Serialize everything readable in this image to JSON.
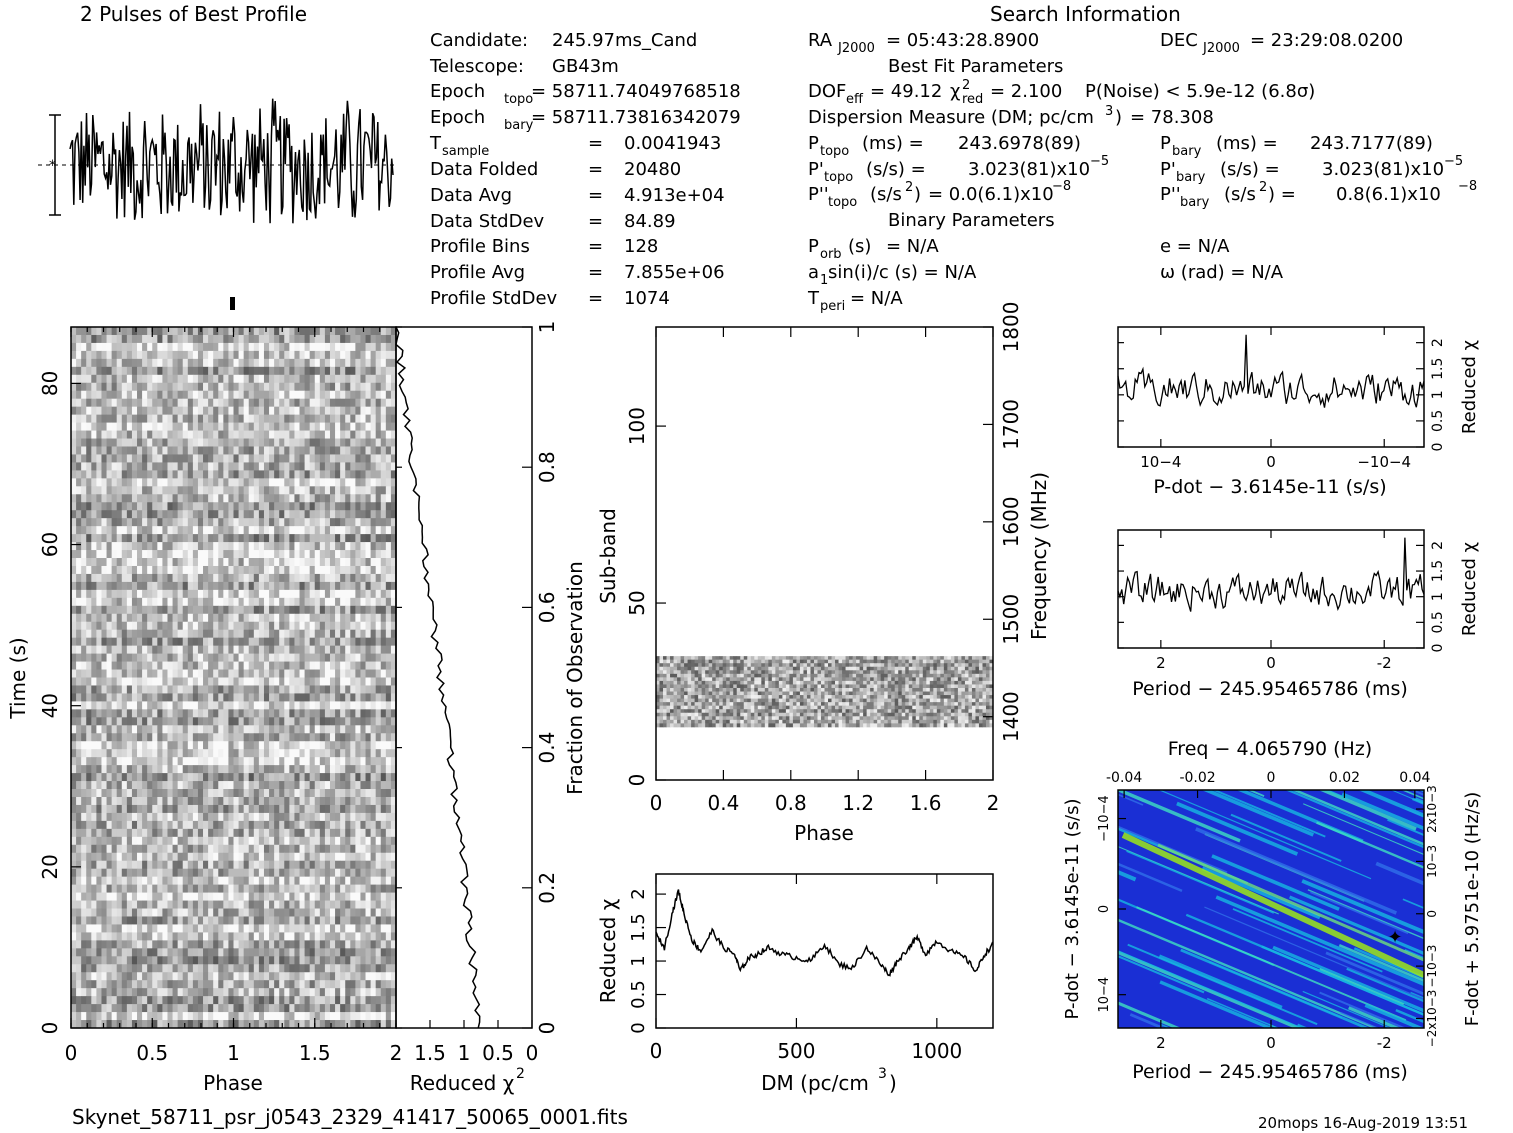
{
  "header": {
    "profile_title": "2 Pulses of Best Profile",
    "search_title": "Search Information",
    "best_fit_title": "Best Fit Parameters",
    "binary_title": "Binary Parameters"
  },
  "candidate_info": [
    {
      "label": "Candidate:",
      "value": "245.97ms_Cand"
    },
    {
      "label": "Telescope:",
      "value": "GB43m"
    },
    {
      "label": "Epoch",
      "sub": "topo",
      "value": "= 58711.74049768518"
    },
    {
      "label": "Epoch",
      "sub": "bary",
      "value": "= 58711.73816342079"
    },
    {
      "label": "T",
      "sub": "sample",
      "value": "0.0041943"
    },
    {
      "label": "Data Folded",
      "value": "20480"
    },
    {
      "label": "Data Avg",
      "value": "4.913e+04"
    },
    {
      "label": "Data StdDev",
      "value": "84.89"
    },
    {
      "label": "Profile Bins",
      "value": "128"
    },
    {
      "label": "Profile Avg",
      "value": "7.855e+06"
    },
    {
      "label": "Profile StdDev",
      "value": "1074"
    }
  ],
  "search_info": {
    "ra": {
      "label": "RA",
      "sub": "J2000",
      "value": "= 05:43:28.8900"
    },
    "dec": {
      "label": "DEC",
      "sub": "J2000",
      "value": "= 23:29:08.0200"
    },
    "dof": {
      "label": "DOF",
      "sub": "eff",
      "value": "= 49.12"
    },
    "chi2": {
      "value": "= 2.100"
    },
    "pnoise": "P(Noise) < 5.9e-12   (6.8σ)",
    "dm_line": "Dispersion Measure (DM; pc/cm",
    "dm_value": "= 78.308",
    "p_topo": {
      "value": "243.6978(89)"
    },
    "p_bary": {
      "value": "243.7177(89)"
    },
    "pd_topo": {
      "value": "3.023(81)x10"
    },
    "pd_bary": {
      "value": "3.023(81)x10"
    },
    "pdd_topo": {
      "value": "= 0.0(6.1)x10"
    },
    "pdd_bary": {
      "value": "0.8(6.1)x10"
    },
    "porb": "= N/A",
    "ecc": "e = N/A",
    "a1": "sin(i)/c (s) = N/A",
    "omega": "ω (rad) = N/A",
    "tperi": "= N/A"
  },
  "axes": {
    "phase": "Phase",
    "time": "Time (s)",
    "reduced_chi2": "Reduced χ",
    "fraction": "Fraction of Observation",
    "subband": "Sub-band",
    "frequency": "Frequency (MHz)",
    "dm": "DM (pc/cm",
    "pdot": "P-dot − 3.6145e-11 (s/s)",
    "period": "Period − 245.95465786 (ms)",
    "freq": "Freq − 4.065790 (Hz)",
    "pdot_left": "P-dot − 3.6145e-11 (s/s)",
    "fdot": "F-dot + 5.9751e-10 (Hz/s)"
  },
  "footer": {
    "filename": "Skynet_58711_psr_j0543_2329_41417_50065_0001.fits",
    "stamp": "20mops 16-Aug-2019 13:51"
  },
  "chart_data": [
    {
      "type": "line",
      "title": "2 Pulses of Best Profile",
      "xlabel": "",
      "ylabel": "",
      "note": "noisy pulse profile, 2 rotations"
    },
    {
      "type": "heatmap",
      "xlabel": "Phase",
      "ylabel": "Time (s)",
      "xlim": [
        0,
        2
      ],
      "ylim": [
        0,
        87
      ],
      "x_ticks": [
        0,
        0.5,
        1,
        1.5
      ],
      "y_ticks": [
        0,
        20,
        40,
        60,
        80
      ]
    },
    {
      "type": "line",
      "xlabel": "Reduced χ2",
      "ylabel": "Fraction of Observation",
      "xlim": [
        2,
        0
      ],
      "ylim": [
        0,
        1
      ],
      "x_ticks": [
        2,
        1.5,
        1,
        0.5,
        0
      ],
      "y_ticks": [
        0,
        0.2,
        0.4,
        0.6,
        0.8,
        1
      ]
    },
    {
      "type": "heatmap",
      "xlabel": "Phase",
      "ylabel": "Sub-band",
      "xlim": [
        0,
        2
      ],
      "ylim": [
        0,
        128
      ],
      "x_ticks": [
        0,
        0.4,
        0.8,
        1.2,
        1.6,
        2
      ],
      "y_ticks": [
        0,
        50,
        100
      ],
      "y2label": "Frequency (MHz)",
      "y2_ticks": [
        1400,
        1500,
        1600,
        1700,
        1800
      ],
      "data_band": [
        15,
        35
      ]
    },
    {
      "type": "line",
      "xlabel": "DM (pc/cm3)",
      "ylabel": "Reduced χ2",
      "xlim": [
        0,
        1200
      ],
      "ylim": [
        0,
        2.3
      ],
      "x_ticks": [
        0,
        500,
        1000
      ],
      "y_ticks": [
        0,
        0.5,
        1,
        1.5,
        2
      ],
      "points": [
        [
          0,
          1.4
        ],
        [
          30,
          1.2
        ],
        [
          60,
          1.75
        ],
        [
          80,
          2.05
        ],
        [
          100,
          1.7
        ],
        [
          130,
          1.3
        ],
        [
          160,
          1.15
        ],
        [
          200,
          1.45
        ],
        [
          240,
          1.2
        ],
        [
          280,
          1.1
        ],
        [
          300,
          0.85
        ],
        [
          330,
          1.05
        ],
        [
          360,
          1.1
        ],
        [
          400,
          1.2
        ],
        [
          450,
          1.1
        ],
        [
          500,
          1.05
        ],
        [
          550,
          1.0
        ],
        [
          600,
          1.25
        ],
        [
          650,
          0.95
        ],
        [
          700,
          0.9
        ],
        [
          750,
          1.2
        ],
        [
          800,
          0.95
        ],
        [
          830,
          0.8
        ],
        [
          860,
          1.0
        ],
        [
          900,
          1.2
        ],
        [
          930,
          1.35
        ],
        [
          960,
          1.1
        ],
        [
          1000,
          1.3
        ],
        [
          1050,
          1.15
        ],
        [
          1100,
          1.05
        ],
        [
          1140,
          0.85
        ],
        [
          1170,
          1.1
        ],
        [
          1200,
          1.25
        ]
      ]
    },
    {
      "type": "line",
      "xlabel": "P-dot − 3.6145e-11 (s/s)",
      "ylabel": "Reduced χ2",
      "ylim": [
        0,
        2.3
      ],
      "x_ticks": [
        "10−4",
        "0",
        "−10−4"
      ],
      "y_ticks": [
        0,
        0.5,
        1,
        1.5,
        2
      ]
    },
    {
      "type": "line",
      "xlabel": "Period − 245.95465786 (ms)",
      "ylabel": "Reduced χ2",
      "ylim": [
        0,
        2.3
      ],
      "x_ticks": [
        2,
        0,
        -2
      ],
      "y_ticks": [
        0,
        0.5,
        1,
        1.5,
        2
      ]
    },
    {
      "type": "heatmap",
      "xlabel": "Period − 245.95465786 (ms)",
      "ylabel": "P-dot − 3.6145e-11 (s/s)",
      "x2label": "Freq − 4.065790 (Hz)",
      "x2_ticks": [
        -0.04,
        -0.02,
        0,
        0.02,
        0.04
      ],
      "y2label": "F-dot + 5.9751e-10 (Hz/s)",
      "x_ticks": [
        2,
        0,
        -2
      ],
      "y_ticks": [
        "−10−4",
        "0",
        "10−4"
      ],
      "colors": {
        "low": "#1a2fd4",
        "mid": "#16b8e0",
        "high": "#9ee818"
      }
    }
  ]
}
